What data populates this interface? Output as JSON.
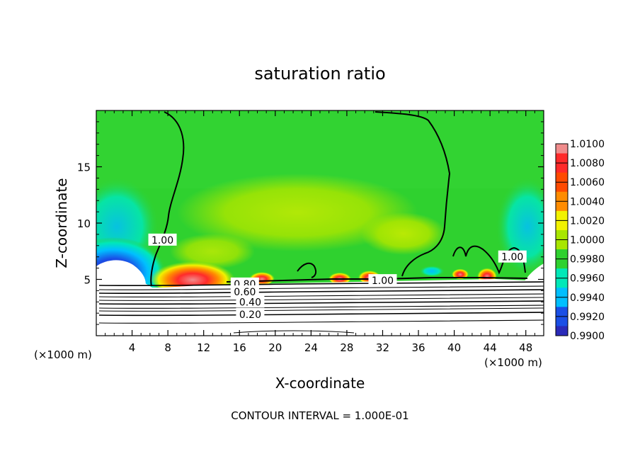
{
  "chart_data": {
    "type": "heatmap",
    "title": "saturation ratio",
    "xlabel": "X-coordinate",
    "ylabel": "Z-coordinate",
    "x_unit": "(×1000 m)",
    "x_unit_right": "(×1000 m)",
    "footer": "CONTOUR INTERVAL = 1.000E-01",
    "xlim": [
      0,
      50
    ],
    "ylim": [
      0,
      20
    ],
    "x_ticks": [
      4,
      8,
      12,
      16,
      20,
      24,
      28,
      32,
      36,
      40,
      44,
      48
    ],
    "y_ticks": [
      5,
      10,
      15
    ],
    "colorbar": {
      "levels": [
        1.01,
        1.008,
        1.006,
        1.004,
        1.002,
        1.0,
        0.998,
        0.996,
        0.994,
        0.992,
        0.99
      ],
      "labels": [
        "1.0100",
        "1.0080",
        "1.0060",
        "1.0040",
        "1.0020",
        "1.0000",
        "0.9980",
        "0.9960",
        "0.9940",
        "0.9920",
        "0.9900"
      ],
      "colors": [
        "#f08c8c",
        "#ff2a2a",
        "#ff4a00",
        "#ff8c00",
        "#f2f200",
        "#a8e600",
        "#2fd12f",
        "#00e8b8",
        "#00bfff",
        "#1a4fe6",
        "#2a2ab8",
        "#6a1aa8"
      ]
    },
    "contour_labels": [
      {
        "text": "1.00",
        "x": 7.4,
        "z": 8.5
      },
      {
        "text": "1.00",
        "x": 32.0,
        "z": 4.9
      },
      {
        "text": "1.00",
        "x": 46.5,
        "z": 7.0
      },
      {
        "text": "0.80",
        "x": 16.6,
        "z": 4.6
      },
      {
        "text": "0.60",
        "x": 16.6,
        "z": 3.9
      },
      {
        "text": "0.40",
        "x": 17.2,
        "z": 3.0
      },
      {
        "text": "0.20",
        "x": 17.2,
        "z": 1.9
      }
    ]
  }
}
